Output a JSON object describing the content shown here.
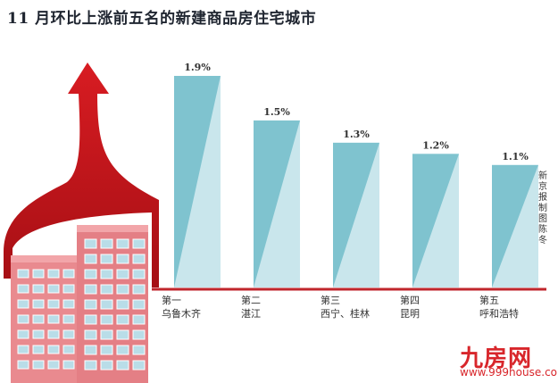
{
  "title": "11 月环比上涨前五名的新建商品房住宅城市",
  "credit": "新京报制图 陈冬",
  "watermark": {
    "logo": "九房网",
    "url": "www.999house.com"
  },
  "colors": {
    "bar_dark": "#7fc3cf",
    "bar_light": "#c9e6ec",
    "arrow": "#c8141a",
    "building": "#e98a8f",
    "window": "#b9dde8",
    "axis": "#c0262c"
  },
  "chart_data": {
    "type": "bar",
    "title": "11 月环比上涨前五名的新建商品房住宅城市",
    "categories": [
      "第一",
      "第二",
      "第三",
      "第四",
      "第五"
    ],
    "cities": [
      "乌鲁木齐",
      "湛江",
      "西宁、桂林",
      "昆明",
      "呼和浩特"
    ],
    "values": [
      1.9,
      1.5,
      1.3,
      1.2,
      1.1
    ],
    "value_labels": [
      "1.9%",
      "1.5%",
      "1.3%",
      "1.2%",
      "1.1%"
    ],
    "ylim": [
      0,
      2.0
    ],
    "grid": false,
    "legend": "none"
  }
}
